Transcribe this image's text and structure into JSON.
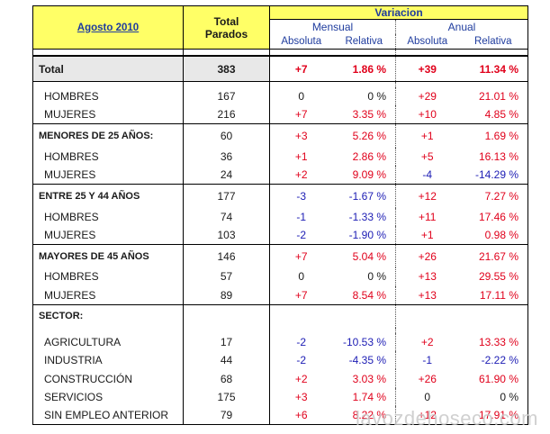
{
  "header": {
    "period": "Agosto 2010",
    "total_line1": "Total",
    "total_line2": "Parados",
    "variacion": "Variacion",
    "mensual": "Mensual",
    "anual": "Anual",
    "absoluta": "Absoluta",
    "relativa": "Relativa"
  },
  "rows": {
    "total": {
      "label": "Total",
      "total": "383",
      "m_abs": "+7",
      "m_rel": "1.86 %",
      "a_abs": "+39",
      "a_rel": "11.34 %"
    },
    "hombres": {
      "label": "HOMBRES",
      "total": "167",
      "m_abs": "0",
      "m_rel": "0 %",
      "a_abs": "+29",
      "a_rel": "21.01 %"
    },
    "mujeres": {
      "label": "MUJERES",
      "total": "216",
      "m_abs": "+7",
      "m_rel": "3.35 %",
      "a_abs": "+10",
      "a_rel": "4.85 %"
    },
    "menores25": {
      "label": "MENORES DE 25 AÑOS:",
      "total": "60",
      "m_abs": "+3",
      "m_rel": "5.26 %",
      "a_abs": "+1",
      "a_rel": "1.69 %"
    },
    "menores25_h": {
      "label": "HOMBRES",
      "total": "36",
      "m_abs": "+1",
      "m_rel": "2.86 %",
      "a_abs": "+5",
      "a_rel": "16.13 %"
    },
    "menores25_m": {
      "label": "MUJERES",
      "total": "24",
      "m_abs": "+2",
      "m_rel": "9.09 %",
      "a_abs": "-4",
      "a_rel": "-14.29 %"
    },
    "entre25_44": {
      "label": "ENTRE 25 Y 44 AÑOS",
      "total": "177",
      "m_abs": "-3",
      "m_rel": "-1.67 %",
      "a_abs": "+12",
      "a_rel": "7.27 %"
    },
    "entre25_44_h": {
      "label": "HOMBRES",
      "total": "74",
      "m_abs": "-1",
      "m_rel": "-1.33 %",
      "a_abs": "+11",
      "a_rel": "17.46 %"
    },
    "entre25_44_m": {
      "label": "MUJERES",
      "total": "103",
      "m_abs": "-2",
      "m_rel": "-1.90 %",
      "a_abs": "+1",
      "a_rel": "0.98 %"
    },
    "mayores45": {
      "label": "MAYORES DE 45 AÑOS",
      "total": "146",
      "m_abs": "+7",
      "m_rel": "5.04 %",
      "a_abs": "+26",
      "a_rel": "21.67 %"
    },
    "mayores45_h": {
      "label": "HOMBRES",
      "total": "57",
      "m_abs": "0",
      "m_rel": "0 %",
      "a_abs": "+13",
      "a_rel": "29.55 %"
    },
    "mayores45_m": {
      "label": "MUJERES",
      "total": "89",
      "m_abs": "+7",
      "m_rel": "8.54 %",
      "a_abs": "+13",
      "a_rel": "17.11 %"
    },
    "sector": {
      "label": "SECTOR:"
    },
    "agricultura": {
      "label": "AGRICULTURA",
      "total": "17",
      "m_abs": "-2",
      "m_rel": "-10.53 %",
      "a_abs": "+2",
      "a_rel": "13.33 %"
    },
    "industria": {
      "label": "INDUSTRIA",
      "total": "44",
      "m_abs": "-2",
      "m_rel": "-4.35 %",
      "a_abs": "-1",
      "a_rel": "-2.22 %"
    },
    "construccion": {
      "label": "CONSTRUCCIÓN",
      "total": "68",
      "m_abs": "+2",
      "m_rel": "3.03 %",
      "a_abs": "+26",
      "a_rel": "61.90 %"
    },
    "servicios": {
      "label": "SERVICIOS",
      "total": "175",
      "m_abs": "+3",
      "m_rel": "1.74 %",
      "a_abs": "0",
      "a_rel": "0 %"
    },
    "sin_empleo": {
      "label": "SIN EMPLEO ANTERIOR",
      "total": "79",
      "m_abs": "+6",
      "m_rel": "8.22 %",
      "a_abs": "+12",
      "a_rel": "17.91 %"
    }
  },
  "watermark": "lavozdehoseco.com",
  "colors": {
    "header_bg": "#ffff66",
    "total_bg": "#e8e8e8",
    "positive": "#e0001b",
    "negative": "#1c1cb4",
    "header_text": "#1f3c9e"
  }
}
